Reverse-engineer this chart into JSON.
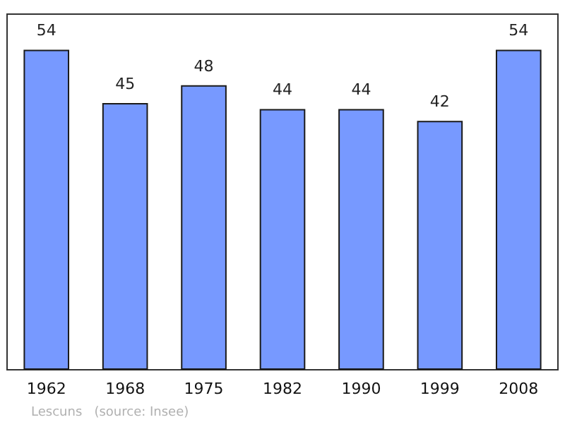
{
  "chart_data": {
    "type": "bar",
    "categories": [
      "1962",
      "1968",
      "1975",
      "1982",
      "1990",
      "1999",
      "2008"
    ],
    "values": [
      54,
      45,
      48,
      44,
      44,
      42,
      54
    ],
    "color": "#7799ff",
    "data_labels": true,
    "annotations": [
      "Lescuns   (source: Insee)"
    ]
  }
}
